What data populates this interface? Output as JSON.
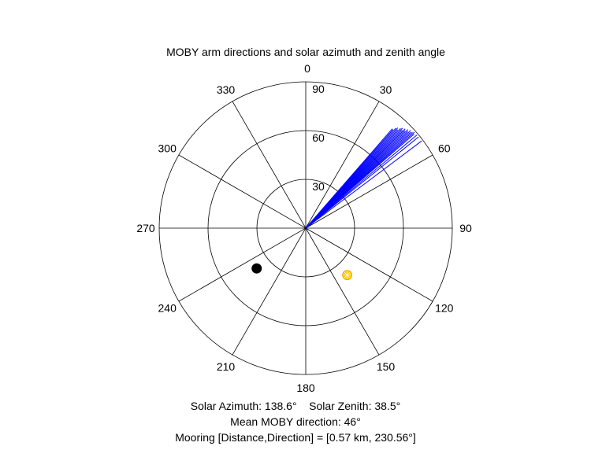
{
  "chart_data": {
    "type": "polar",
    "title": "MOBY arm directions and solar azimuth and zenith angle",
    "theta_zero": "top",
    "theta_direction": "clockwise",
    "radial_axis": {
      "range": [
        90,
        0
      ],
      "ticks": [
        90,
        60,
        30
      ],
      "tick_labels": [
        "90",
        "60",
        "30"
      ],
      "tick_angle_deg": 0
    },
    "angular_ticks": [
      0,
      30,
      60,
      90,
      120,
      150,
      180,
      210,
      240,
      270,
      300,
      330
    ],
    "angular_tick_labels": [
      "0",
      "30",
      "60",
      "90",
      "120",
      "150",
      "180",
      "210",
      "240",
      "270",
      "300",
      "330"
    ],
    "grid": true,
    "series": [
      {
        "kind": "lines",
        "color": "#0000ff",
        "directions_deg": [
          41,
          41.5,
          42,
          42.5,
          43,
          43.5,
          44,
          44.5,
          45,
          45.5,
          46,
          46.5,
          47,
          47.5,
          48,
          48.5,
          49,
          50,
          51,
          53
        ],
        "lengths": [
          0.9,
          0.9,
          0.92,
          0.93,
          0.92,
          0.94,
          0.95,
          0.94,
          0.96,
          0.95,
          0.97,
          0.96,
          0.98,
          0.97,
          0.98,
          0.99,
          0.98,
          0.99,
          0.99,
          0.99
        ]
      },
      {
        "kind": "marker",
        "name": "sun",
        "color": "#ffcc00",
        "theta_deg": 138.6,
        "zenith_deg": 38.5
      },
      {
        "kind": "marker",
        "name": "mooring",
        "color": "#000000",
        "theta_deg": 230.56,
        "zenith_deg": 39
      }
    ]
  },
  "captions": {
    "line1": "Solar Azimuth: 138.6°    Solar Zenith: 38.5°",
    "line2": "Mean MOBY direction: 46°",
    "line3": "Mooring [Distance,Direction] = [0.57 km, 230.56°]"
  }
}
